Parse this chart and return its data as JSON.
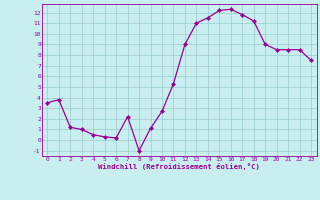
{
  "x": [
    0,
    1,
    2,
    3,
    4,
    5,
    6,
    7,
    8,
    9,
    10,
    11,
    12,
    13,
    14,
    15,
    16,
    17,
    18,
    19,
    20,
    21,
    22,
    23
  ],
  "y": [
    3.5,
    3.8,
    1.2,
    1.0,
    0.5,
    0.3,
    0.2,
    2.2,
    -1.0,
    1.1,
    2.7,
    5.3,
    9.0,
    11.0,
    11.5,
    12.2,
    12.3,
    11.8,
    11.2,
    9.0,
    8.5,
    8.5,
    8.5,
    7.5
  ],
  "line_color": "#990099",
  "marker": "D",
  "marker_size": 2.0,
  "bg_color": "#c8eef0",
  "grid_color": "#99cccc",
  "xlabel": "Windchill (Refroidissement éolien,°C)",
  "xlabel_color": "#990099",
  "tick_color": "#990099",
  "ylim": [
    -1.5,
    12.8
  ],
  "xlim": [
    -0.5,
    23.5
  ],
  "yticks": [
    -1,
    0,
    1,
    2,
    3,
    4,
    5,
    6,
    7,
    8,
    9,
    10,
    11,
    12
  ],
  "xticks": [
    0,
    1,
    2,
    3,
    4,
    5,
    6,
    7,
    8,
    9,
    10,
    11,
    12,
    13,
    14,
    15,
    16,
    17,
    18,
    19,
    20,
    21,
    22,
    23
  ],
  "spine_color": "#990099",
  "linewidth": 0.9
}
